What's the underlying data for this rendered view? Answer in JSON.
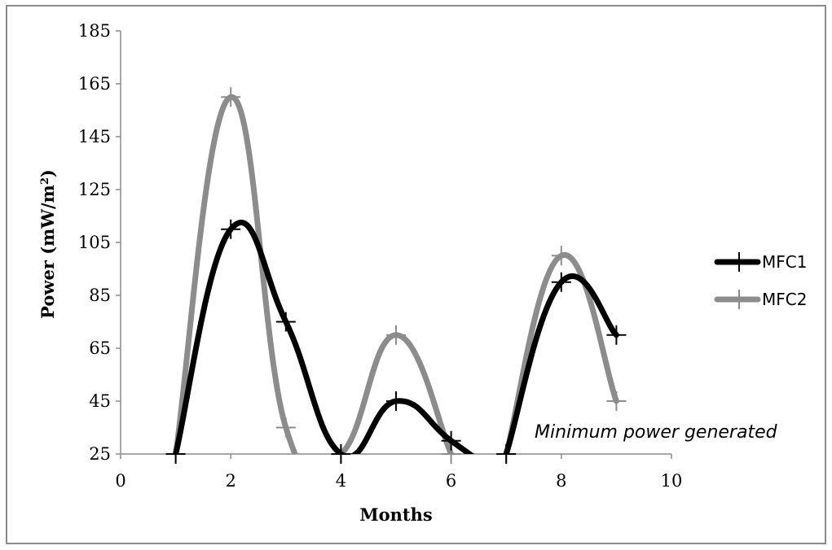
{
  "chart_data": {
    "type": "line",
    "title": "",
    "xlabel": "Months",
    "ylabel": "Power (mW/m²)",
    "ylabel_parts": {
      "main": "Power (mW/m",
      "sup": "2",
      "close": ")"
    },
    "xlim": [
      0,
      10
    ],
    "ylim": [
      25,
      185
    ],
    "x_ticks": [
      0,
      2,
      4,
      6,
      8,
      10
    ],
    "y_ticks": [
      25,
      45,
      65,
      85,
      105,
      125,
      145,
      165,
      185
    ],
    "legend_position": "right",
    "grid": false,
    "smooth": true,
    "series": [
      {
        "name": "MFC1",
        "color": "#000000",
        "segments": [
          {
            "x": [
              1,
              2,
              3,
              4,
              5,
              6,
              7
            ],
            "y": [
              25,
              110,
              75,
              25,
              45,
              30,
              15
            ]
          },
          {
            "x": [
              7,
              8,
              9
            ],
            "y": [
              25,
              90,
              70
            ]
          }
        ]
      },
      {
        "name": "MFC2",
        "color": "#8c8c8c",
        "segments": [
          {
            "x": [
              1,
              2,
              3,
              4,
              5,
              6
            ],
            "y": [
              25,
              160,
              35,
              25,
              70,
              25
            ]
          },
          {
            "x": [
              7,
              8,
              9
            ],
            "y": [
              25,
              100,
              45
            ]
          }
        ]
      }
    ],
    "annotation": "Minimum power generated"
  }
}
